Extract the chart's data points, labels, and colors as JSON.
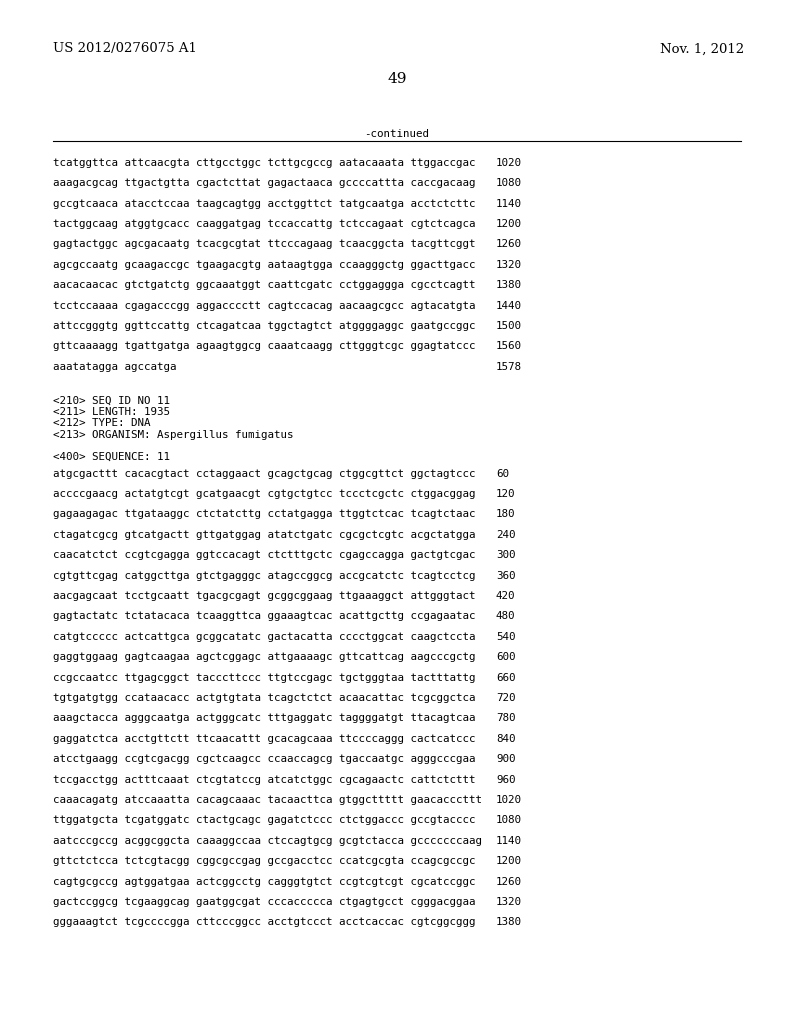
{
  "header_left": "US 2012/0276075 A1",
  "header_right": "Nov. 1, 2012",
  "page_number": "49",
  "continued_label": "-continued",
  "background_color": "#ffffff",
  "text_color": "#000000",
  "font_size_header": 9.5,
  "font_size_body": 7.8,
  "font_size_page": 11,
  "sequence_lines_top": [
    [
      "tcatggttca attcaacgta cttgcctggc tcttgcgccg aatacaaata ttggaccgac",
      "1020"
    ],
    [
      "aaagacgcag ttgactgtta cgactcttat gagactaaca gccccattta caccgacaag",
      "1080"
    ],
    [
      "gccgtcaaca atacctccaa taagcagtgg acctggttct tatgcaatga acctctcttc",
      "1140"
    ],
    [
      "tactggcaag atggtgcacc caaggatgag tccaccattg tctccagaat cgtctcagca",
      "1200"
    ],
    [
      "gagtactggc agcgacaatg tcacgcgtat ttcccagaag tcaacggcta tacgttcggt",
      "1260"
    ],
    [
      "agcgccaatg gcaagaccgc tgaagacgtg aataagtgga ccaagggctg ggacttgacc",
      "1320"
    ],
    [
      "aacacaacac gtctgatctg ggcaaatggt caattcgatc cctggaggga cgcctcagtt",
      "1380"
    ],
    [
      "tcctccaaaa cgagacccgg aggacccctt cagtccacag aacaagcgcc agtacatgta",
      "1440"
    ],
    [
      "attccgggtg ggttccattg ctcagatcaa tggctagtct atggggaggc gaatgccggc",
      "1500"
    ],
    [
      "gttcaaaagg tgattgatga agaagtggcg caaatcaagg cttgggtcgc ggagtatccc",
      "1560"
    ],
    [
      "aaatatagga agccatga",
      "1578"
    ]
  ],
  "metadata_lines": [
    "<210> SEQ ID NO 11",
    "<211> LENGTH: 1935",
    "<212> TYPE: DNA",
    "<213> ORGANISM: Aspergillus fumigatus"
  ],
  "sequence_label": "<400> SEQUENCE: 11",
  "sequence_lines_bottom": [
    [
      "atgcgacttt cacacgtact cctaggaact gcagctgcag ctggcgttct ggctagtccc",
      "60"
    ],
    [
      "accccgaacg actatgtcgt gcatgaacgt cgtgctgtcc tccctcgctc ctggacggag",
      "120"
    ],
    [
      "gagaagagac ttgataaggc ctctatcttg cctatgagga ttggtctcac tcagtctaac",
      "180"
    ],
    [
      "ctagatcgcg gtcatgactt gttgatggag atatctgatc cgcgctcgtc acgctatgga",
      "240"
    ],
    [
      "caacatctct ccgtcgagga ggtccacagt ctctttgctc cgagccagga gactgtcgac",
      "300"
    ],
    [
      "cgtgttcgag catggcttga gtctgagggc atagccggcg accgcatctc tcagtcctcg",
      "360"
    ],
    [
      "aacgagcaat tcctgcaatt tgacgcgagt gcggcggaag ttgaaaggct attgggtact",
      "420"
    ],
    [
      "gagtactatc tctatacaca tcaaggttca ggaaagtcac acattgcttg ccgagaatac",
      "480"
    ],
    [
      "catgtccccc actcattgca gcggcatatc gactacatta cccctggcat caagctccta",
      "540"
    ],
    [
      "gaggtggaag gagtcaagaa agctcggagc attgaaaagc gttcattcag aagcccgctg",
      "600"
    ],
    [
      "ccgccaatcc ttgagcggct tacccttccc ttgtccgagc tgctgggtaa tactttattg",
      "660"
    ],
    [
      "tgtgatgtgg ccataacacc actgtgtata tcagctctct acaacattac tcgcggctca",
      "720"
    ],
    [
      "aaagctacca agggcaatga actgggcatc tttgaggatc taggggatgt ttacagtcaa",
      "780"
    ],
    [
      "gaggatctca acctgttctt ttcaacattt gcacagcaaa ttccccaggg cactcatccc",
      "840"
    ],
    [
      "atcctgaagg ccgtcgacgg cgctcaagcc ccaaccagcg tgaccaatgc agggcccgaa",
      "900"
    ],
    [
      "tccgacctgg actttcaaat ctcgtatccg atcatctggc cgcagaactc cattctcttt",
      "960"
    ],
    [
      "caaacagatg atccaaatta cacagcaaac tacaacttca gtggcttttt gaacacccttt",
      "1020"
    ],
    [
      "ttggatgcta tcgatggatc ctactgcagc gagatctccc ctctggaccc gccgtacccc",
      "1080"
    ],
    [
      "aatcccgccg acggcggcta caaaggccaa ctccagtgcg gcgtctacca gcccccccaag",
      "1140"
    ],
    [
      "gttctctcca tctcgtacgg cggcgccgag gccgacctcc ccatcgcgta ccagcgccgc",
      "1200"
    ],
    [
      "cagtgcgccg agtggatgaa actcggcctg cagggtgtct ccgtcgtcgt cgcatccggc",
      "1260"
    ],
    [
      "gactccggcg tcgaaggcag gaatggcgat cccaccccca ctgagtgcct cgggacggaa",
      "1320"
    ],
    [
      "gggaaagtct tcgccccgga cttcccggcc acctgtccct acctcaccac cgtcggcggg",
      "1380"
    ]
  ]
}
